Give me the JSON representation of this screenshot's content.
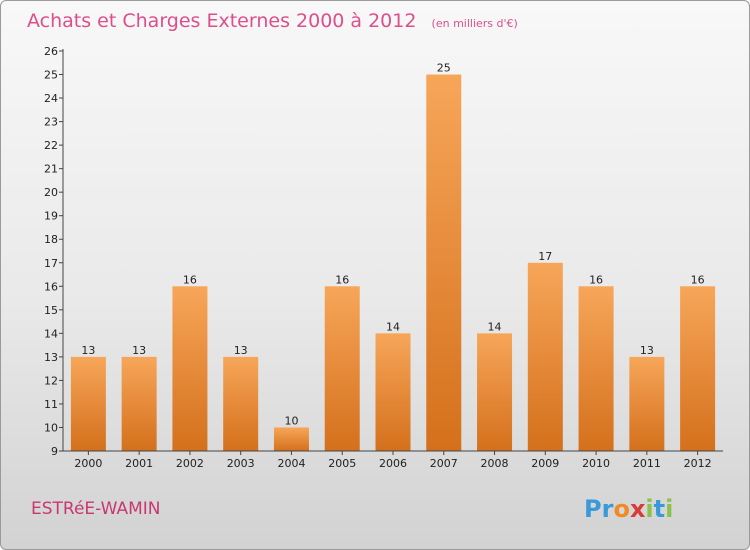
{
  "chart_data": {
    "type": "bar",
    "title": "Achats et Charges Externes 2000 à 2012",
    "subtitle": "(en milliers d'€)",
    "xlabel": "",
    "ylabel": "",
    "categories": [
      "2000",
      "2001",
      "2002",
      "2003",
      "2004",
      "2005",
      "2006",
      "2007",
      "2008",
      "2009",
      "2010",
      "2011",
      "2012"
    ],
    "values": [
      13,
      13,
      16,
      13,
      10,
      16,
      14,
      25,
      14,
      17,
      16,
      13,
      16
    ],
    "ylim": [
      9,
      26
    ],
    "yticks": [
      9,
      10,
      11,
      12,
      13,
      14,
      15,
      16,
      17,
      18,
      19,
      20,
      21,
      22,
      23,
      24,
      25,
      26
    ],
    "grid": false,
    "legend": "none",
    "bar_color": "#f0882f"
  },
  "footer": {
    "place": "ESTRéE-WAMIN"
  },
  "logo": {
    "text": "Proxiti",
    "letters": [
      "P",
      "r",
      "o",
      "x",
      "i",
      "t",
      "i"
    ],
    "colors": [
      "#3a9ad9",
      "#3a9ad9",
      "#f08a24",
      "#d93b3b",
      "#8bc34a",
      "#3a9ad9",
      "#8bc34a"
    ]
  }
}
